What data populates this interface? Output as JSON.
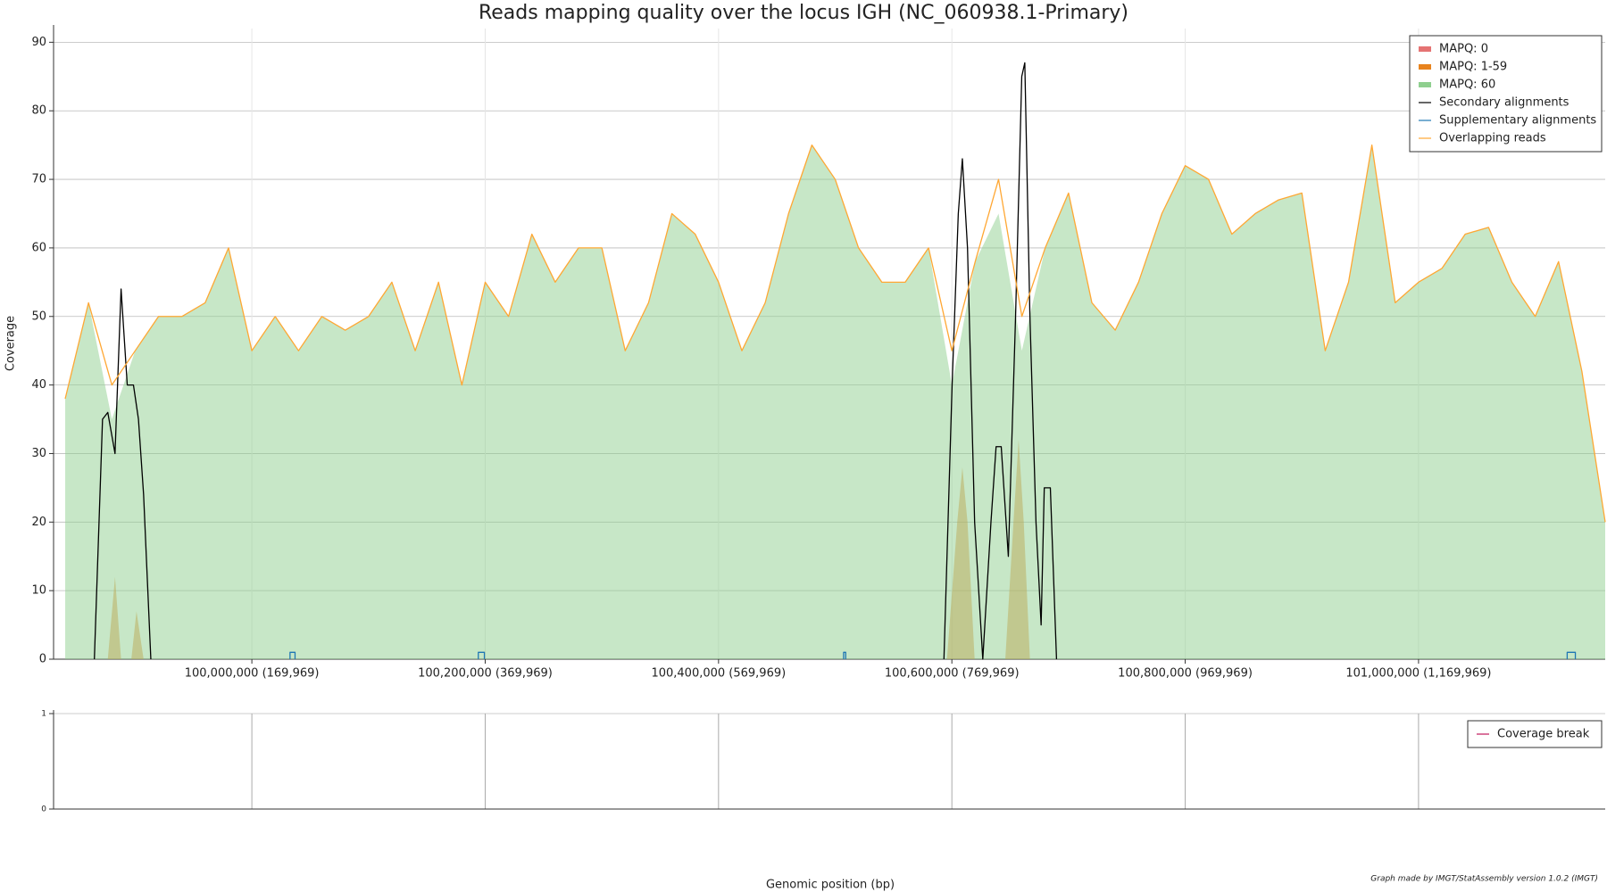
{
  "chart_data": [
    {
      "type": "area",
      "title": "Reads mapping quality over the locus IGH (NC_060938.1-Primary)",
      "y_label": "Coverage",
      "xlim": [
        99830031,
        101160000
      ],
      "ylim": [
        0,
        92
      ],
      "xticks": [
        {
          "value": 100000000,
          "label": "100,000,000 (169,969)"
        },
        {
          "value": 100200000,
          "label": "100,200,000 (369,969)"
        },
        {
          "value": 100400000,
          "label": "100,400,000 (569,969)"
        },
        {
          "value": 100600000,
          "label": "100,600,000 (769,969)"
        },
        {
          "value": 100800000,
          "label": "100,800,000 (969,969)"
        },
        {
          "value": 101000000,
          "label": "101,000,000 (1,169,969)"
        }
      ],
      "yticks": [
        0,
        10,
        20,
        30,
        40,
        50,
        60,
        70,
        80,
        90
      ],
      "grid": true,
      "legend": "upper right",
      "series": [
        {
          "name": "MAPQ: 0",
          "color": "#e57373",
          "kind": "area",
          "x": [
            99840000,
            101160000
          ],
          "values": [
            0,
            0
          ]
        },
        {
          "name": "MAPQ: 1-59",
          "color": "#e8831e",
          "kind": "area",
          "x": [
            99876500,
            99882700,
            99887900,
            99896700,
            99901100,
            99907200,
            100595800,
            100604600,
            100609000,
            100613400,
            100619500,
            100645800,
            100652800,
            100657200,
            100661600,
            100666900
          ],
          "values": [
            0,
            12,
            0,
            0,
            7,
            0,
            0,
            20,
            28,
            20,
            0,
            0,
            20,
            32,
            20,
            0
          ]
        },
        {
          "name": "MAPQ: 60",
          "color": "#8fcf8f",
          "kind": "area",
          "x": [
            99840000,
            99860000,
            99880000,
            99900000,
            99920000,
            99940000,
            99960000,
            99980000,
            100000000,
            100020000,
            100040000,
            100060000,
            100080000,
            100100000,
            100120000,
            100140000,
            100160000,
            100180000,
            100200000,
            100220000,
            100240000,
            100260000,
            100280000,
            100300000,
            100320000,
            100340000,
            100360000,
            100380000,
            100400000,
            100420000,
            100440000,
            100460000,
            100480000,
            100500000,
            100520000,
            100540000,
            100560000,
            100580000,
            100600000,
            100620000,
            100640000,
            100660000,
            100680000,
            100700000,
            100720000,
            100740000,
            100760000,
            100780000,
            100800000,
            100820000,
            100840000,
            100860000,
            100880000,
            100900000,
            100920000,
            100940000,
            100960000,
            100980000,
            101000000,
            101020000,
            101040000,
            101060000,
            101080000,
            101100000,
            101120000,
            101140000,
            101160000
          ],
          "values": [
            38,
            52,
            35,
            45,
            50,
            50,
            52,
            60,
            45,
            50,
            45,
            50,
            48,
            50,
            55,
            45,
            55,
            40,
            55,
            50,
            62,
            55,
            60,
            60,
            45,
            52,
            65,
            62,
            55,
            45,
            52,
            65,
            75,
            70,
            60,
            55,
            55,
            60,
            40,
            58,
            65,
            45,
            60,
            68,
            52,
            48,
            55,
            65,
            72,
            70,
            62,
            65,
            67,
            68,
            45,
            55,
            75,
            52,
            55,
            57,
            62,
            63,
            55,
            50,
            58,
            42,
            20
          ]
        },
        {
          "name": "Secondary alignments",
          "color": "#000000",
          "kind": "line",
          "x": [
            99865000,
            99872000,
            99876500,
            99882700,
            99887900,
            99893200,
            99898500,
            99902800,
            99907200,
            99913400,
            100200000,
            100593200,
            100600200,
            100605500,
            100609000,
            100613400,
            100619500,
            100626500,
            100633500,
            100637900,
            100642300,
            100648400,
            100654600,
            100659900,
            100662500,
            100666900,
            100672100,
            100676500,
            100679200,
            100684400,
            100689700
          ],
          "values": [
            0,
            35,
            36,
            30,
            54,
            40,
            40,
            35,
            24,
            0,
            null,
            0,
            40,
            65,
            73,
            60,
            20,
            0,
            20,
            31,
            31,
            15,
            50,
            85,
            87,
            50,
            20,
            5,
            25,
            25,
            0
          ]
        },
        {
          "name": "Supplementary alignments",
          "color": "#1f77b4",
          "kind": "line",
          "x": [
            100032700,
            100032700,
            100037000,
            100037000,
            100100000,
            100194100,
            100194100,
            100199300,
            100199300,
            100300000,
            100507200,
            100507200,
            100509000,
            100509000,
            100800000,
            101127400,
            101127400,
            101134400,
            101134400
          ],
          "values": [
            0,
            1,
            1,
            0,
            null,
            0,
            1,
            1,
            0,
            null,
            0,
            1,
            1,
            0,
            null,
            0,
            1,
            1,
            0
          ]
        },
        {
          "name": "Overlapping reads",
          "color": "#ffa733",
          "kind": "line",
          "x": [
            99840000,
            99860000,
            99880000,
            99900000,
            99920000,
            99940000,
            99960000,
            99980000,
            100000000,
            100020000,
            100040000,
            100060000,
            100080000,
            100100000,
            100120000,
            100140000,
            100160000,
            100180000,
            100200000,
            100220000,
            100240000,
            100260000,
            100280000,
            100300000,
            100320000,
            100340000,
            100360000,
            100380000,
            100400000,
            100420000,
            100440000,
            100460000,
            100480000,
            100500000,
            100520000,
            100540000,
            100560000,
            100580000,
            100600000,
            100620000,
            100640000,
            100660000,
            100680000,
            100700000,
            100720000,
            100740000,
            100760000,
            100780000,
            100800000,
            100820000,
            100840000,
            100860000,
            100880000,
            100900000,
            100920000,
            100940000,
            100960000,
            100980000,
            101000000,
            101020000,
            101040000,
            101060000,
            101080000,
            101100000,
            101120000,
            101140000,
            101160000
          ],
          "values": [
            38,
            52,
            40,
            45,
            50,
            50,
            52,
            60,
            45,
            50,
            45,
            50,
            48,
            50,
            55,
            45,
            55,
            40,
            55,
            50,
            62,
            55,
            60,
            60,
            45,
            52,
            65,
            62,
            55,
            45,
            52,
            65,
            75,
            70,
            60,
            55,
            55,
            60,
            45,
            58,
            70,
            50,
            60,
            68,
            52,
            48,
            55,
            65,
            72,
            70,
            62,
            65,
            67,
            68,
            45,
            55,
            75,
            52,
            55,
            57,
            62,
            63,
            55,
            50,
            58,
            42,
            20
          ]
        }
      ]
    },
    {
      "type": "line",
      "x_label": "Genomic position (bp)",
      "annotation": "Graph made by IMGT/StatAssembly version 1.0.2 (IMGT)",
      "ylim": [
        0,
        1
      ],
      "yticks": [
        0,
        1
      ],
      "grid": true,
      "legend": "upper right",
      "series": [
        {
          "name": "Coverage break",
          "color": "#c2185b",
          "kind": "line",
          "x": [],
          "values": []
        }
      ]
    }
  ]
}
